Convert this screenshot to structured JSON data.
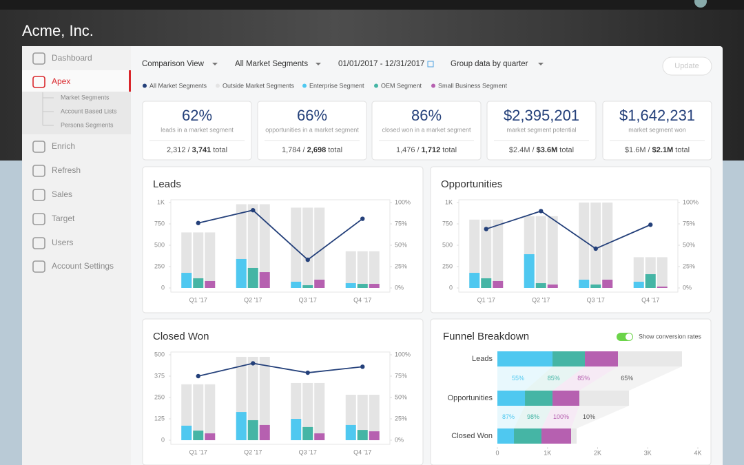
{
  "header": {
    "company": "Acme, Inc."
  },
  "sidebar": {
    "items": [
      "Dashboard",
      "Apex",
      "Enrich",
      "Refresh",
      "Sales",
      "Target",
      "Users",
      "Account Settings"
    ],
    "active": 1,
    "subitems": [
      "Market Segments",
      "Account Based Lists",
      "Persona Segments"
    ]
  },
  "toolbar": {
    "view": "Comparison View",
    "segments": "All Market Segments",
    "dates": "01/01/2017 - 12/31/2017",
    "group": "Group data by quarter",
    "update": "Update"
  },
  "legend": [
    {
      "name": "All Market Segments",
      "color": "#24407a"
    },
    {
      "name": "Outside Market Segments",
      "color": "#e4e4e4"
    },
    {
      "name": "Enterprise Segment",
      "color": "#4fc8f0"
    },
    {
      "name": "OEM Segment",
      "color": "#45b5a5"
    },
    {
      "name": "Small Business Segment",
      "color": "#b660b0"
    }
  ],
  "kpis": [
    {
      "value": "62%",
      "label": "leads in a market segment",
      "sub_prefix": "2,312 /",
      "sub_bold": "3,741",
      "sub_suffix": "total"
    },
    {
      "value": "66%",
      "label": "opportunities in a market segment",
      "sub_prefix": "1,784 /",
      "sub_bold": "2,698",
      "sub_suffix": "total"
    },
    {
      "value": "86%",
      "label": "closed won in a market segment",
      "sub_prefix": "1,476 /",
      "sub_bold": "1,712",
      "sub_suffix": "total"
    },
    {
      "value": "$2,395,201",
      "label": "market segment potential",
      "sub_prefix": "$2.4M /",
      "sub_bold": "$3.6M",
      "sub_suffix": "total"
    },
    {
      "value": "$1,642,231",
      "label": "market segment won",
      "sub_prefix": "$1.6M /",
      "sub_bold": "$2.1M",
      "sub_suffix": "total"
    }
  ],
  "charts": [
    {
      "type": "bar-line",
      "title": "Leads",
      "categories": [
        "Q1 '17",
        "Q2 '17",
        "Q3 '17",
        "Q4 '17"
      ],
      "ylim": [
        0,
        1000
      ],
      "yticks": [
        0,
        250,
        500,
        750,
        {
          "value": 1000,
          "label": "1K"
        }
      ],
      "y2lim": [
        0,
        100
      ],
      "y2ticks": [
        {
          "value": 0,
          "label": "0%"
        },
        {
          "value": 25,
          "label": "25%"
        },
        {
          "value": 50,
          "label": "50%"
        },
        {
          "value": 75,
          "label": "75%"
        },
        {
          "value": 100,
          "label": "100%"
        }
      ],
      "series": [
        {
          "color": "#e4e4e4",
          "values": [
            650,
            980,
            940,
            430
          ]
        },
        {
          "color": "#4fc8f0",
          "values": [
            177,
            339,
            73,
            56
          ]
        },
        {
          "color": "#45b5a5",
          "values": [
            113,
            234,
            32,
            48
          ]
        },
        {
          "color": "#b660b0",
          "values": [
            81,
            185,
            97,
            48
          ]
        },
        {
          "color": "#24407a",
          "axis": "y2",
          "values": [
            76,
            91,
            33,
            81
          ]
        }
      ]
    },
    {
      "type": "bar-line",
      "title": "Opportunities",
      "categories": [
        "Q1 '17",
        "Q2 '17",
        "Q3 '17",
        "Q4 '17"
      ],
      "ylim": [
        0,
        1000
      ],
      "yticks": [
        0,
        250,
        500,
        750,
        {
          "value": 1000,
          "label": "1K"
        }
      ],
      "y2lim": [
        0,
        100
      ],
      "y2ticks": [
        {
          "value": 0,
          "label": "0%"
        },
        {
          "value": 25,
          "label": "25%"
        },
        {
          "value": 50,
          "label": "50%"
        },
        {
          "value": 75,
          "label": "75%"
        },
        {
          "value": 100,
          "label": "100%"
        }
      ],
      "series": [
        {
          "color": "#e4e4e4",
          "values": [
            800,
            840,
            1000,
            360
          ]
        },
        {
          "color": "#4fc8f0",
          "values": [
            177,
            395,
            97,
            73
          ]
        },
        {
          "color": "#45b5a5",
          "values": [
            113,
            56,
            40,
            161
          ]
        },
        {
          "color": "#b660b0",
          "values": [
            81,
            40,
            97,
            16
          ]
        },
        {
          "color": "#24407a",
          "axis": "y2",
          "values": [
            69,
            90,
            46,
            74
          ]
        }
      ]
    },
    {
      "type": "bar-line",
      "title": "Closed Won",
      "categories": [
        "Q1 '17",
        "Q2 '17",
        "Q3 '17",
        "Q4 '17"
      ],
      "ylim": [
        0,
        500
      ],
      "yticks": [
        0,
        125,
        250,
        375,
        500
      ],
      "y2lim": [
        0,
        100
      ],
      "y2ticks": [
        {
          "value": 0,
          "label": "0%"
        },
        {
          "value": 25,
          "label": "25%"
        },
        {
          "value": 50,
          "label": "50%"
        },
        {
          "value": 75,
          "label": "75%"
        },
        {
          "value": 100,
          "label": "100%"
        }
      ],
      "series": [
        {
          "color": "#e4e4e4",
          "values": [
            327,
            488,
            335,
            266
          ]
        },
        {
          "color": "#4fc8f0",
          "values": [
            85,
            165,
            125,
            89
          ]
        },
        {
          "color": "#45b5a5",
          "values": [
            56,
            117,
            77,
            60
          ]
        },
        {
          "color": "#b660b0",
          "values": [
            40,
            89,
            40,
            52
          ]
        },
        {
          "color": "#24407a",
          "axis": "y2",
          "values": [
            75,
            90,
            79,
            86
          ]
        }
      ]
    }
  ],
  "funnel": {
    "type": "stacked-bar",
    "title": "Funnel Breakdown",
    "toggle_label": "Show conversion rates",
    "toggle_on": true,
    "categories": [
      "Leads",
      "Opportunities",
      "Closed Won"
    ],
    "xlim": [
      0,
      4000
    ],
    "xticks": [
      0,
      {
        "value": 1000,
        "label": "1K"
      },
      {
        "value": 2000,
        "label": "2K"
      },
      {
        "value": 3000,
        "label": "3K"
      },
      {
        "value": 4000,
        "label": "4K"
      }
    ],
    "series": [
      {
        "color": "#4fc8f0",
        "values": [
          1100,
          550,
          330
        ]
      },
      {
        "color": "#45b5a5",
        "values": [
          646,
          550,
          550
        ]
      },
      {
        "color": "#b660b0",
        "values": [
          660,
          536,
          591
        ]
      },
      {
        "color": "#e8e8e8",
        "values": [
          1278,
          990,
          110
        ]
      }
    ],
    "conversion_rates": [
      {
        "values": [
          55,
          85,
          85,
          65
        ],
        "value_labels": [
          "55%",
          "85%",
          "85%",
          "65%"
        ]
      },
      {
        "values": [
          87,
          98,
          100,
          10
        ],
        "value_labels": [
          "87%",
          "98%",
          "100%",
          "10%"
        ]
      }
    ]
  }
}
